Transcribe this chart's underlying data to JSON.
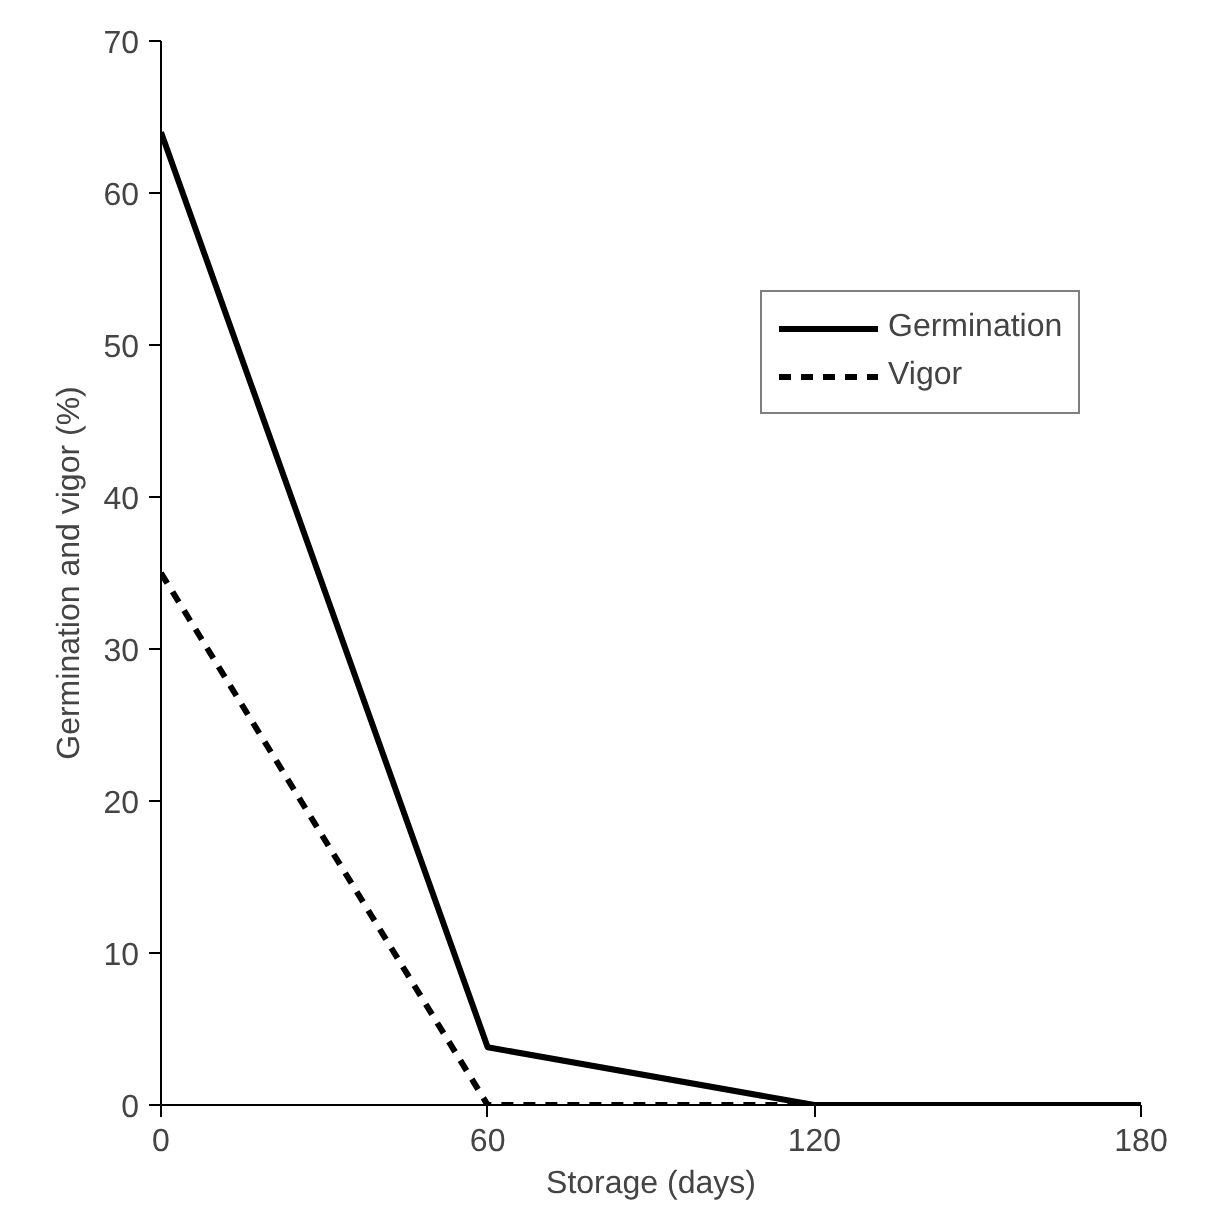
{
  "chart_data": {
    "type": "line",
    "xlabel": "Storage (days)",
    "ylabel": "Germination and vigor (%)",
    "x": [
      0,
      60,
      120,
      180
    ],
    "xlim": [
      0,
      180
    ],
    "xticks": [
      0,
      60,
      120,
      180
    ],
    "ylim": [
      0,
      70
    ],
    "yticks": [
      0,
      10,
      20,
      30,
      40,
      50,
      60,
      70
    ],
    "grid": false,
    "legend": "right",
    "marker": "none",
    "series": [
      {
        "name": "Germination",
        "color": "#000000",
        "line_style": "solid",
        "values": [
          64,
          3.8,
          0,
          0
        ]
      },
      {
        "name": "Vigor",
        "color": "#000000",
        "line_style": "dashed",
        "values": [
          35,
          0,
          0,
          0
        ]
      }
    ]
  }
}
